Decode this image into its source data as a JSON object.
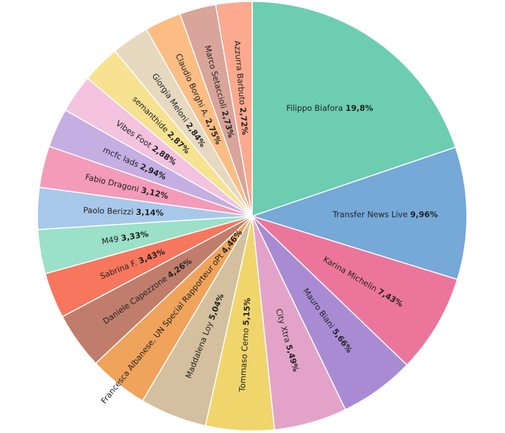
{
  "chart_data": {
    "type": "pie",
    "categories": [
      "Filippo Biafora",
      "Transfer News Live",
      "Karina Michelin",
      "Mauro Biani",
      "City Xtra",
      "Tommaso Cerno",
      "Maddalena Loy",
      "Francesca Albanese, UN Special Rapporteur oPt",
      "Daniele Capezzone",
      "Sabrina F.",
      "M49",
      "Paolo Berizzi",
      "Fabio Dragoni",
      "mcfc lads",
      "Vibes Foot",
      "semanthide",
      "Giorgia Meloni",
      "Claudio Borghi A.",
      "Marco Setaccioli",
      "Azzurra Barbuto"
    ],
    "values": [
      19.8,
      9.96,
      7.43,
      5.66,
      5.49,
      5.15,
      5.04,
      4.46,
      4.26,
      3.43,
      3.33,
      3.14,
      3.12,
      2.94,
      2.88,
      2.87,
      2.84,
      2.75,
      2.73,
      2.72
    ],
    "value_labels": [
      "19,8%",
      "9,96%",
      "7,43%",
      "5,66%",
      "5,49%",
      "5,15%",
      "5,04%",
      "4,46%",
      "4,26%",
      "3,43%",
      "3,33%",
      "3,14%",
      "3,12%",
      "2,94%",
      "2,88%",
      "2,87%",
      "2,84%",
      "2,75%",
      "2,73%",
      "2,72%"
    ],
    "colors": [
      "#6dcdb0",
      "#76a8d8",
      "#ec769b",
      "#a98bd4",
      "#e3a3c9",
      "#f0d56c",
      "#d4c09e",
      "#f0a35a",
      "#c07d6c",
      "#f7765e",
      "#9be0c8",
      "#a8c8ea",
      "#f39bb8",
      "#c4aee2",
      "#f2c2df",
      "#f7e291",
      "#e7d9c0",
      "#fbbd84",
      "#d9a49a",
      "#fba98f"
    ]
  }
}
